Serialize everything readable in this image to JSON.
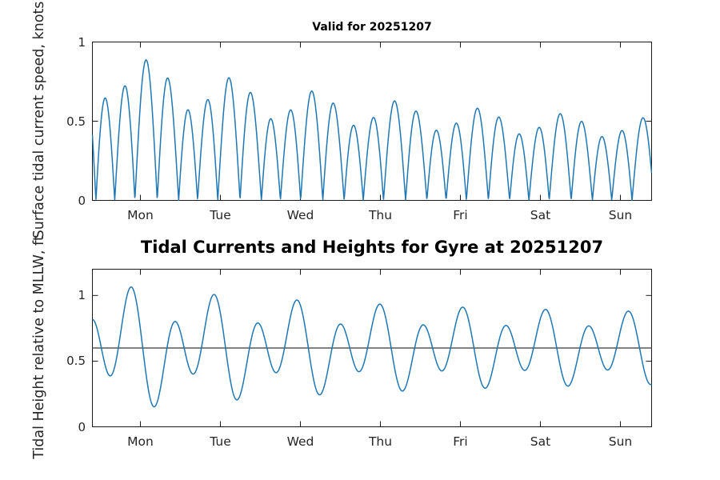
{
  "figure": {
    "kind": "tide-prediction-figure",
    "background": "#ffffff",
    "axes_color": "#1a1a1a",
    "tick_text_color": "#262626"
  },
  "chart_data": [
    {
      "type": "line",
      "title": "Valid for 20251207",
      "ylabel": "Surface tidal current speed, knots",
      "xlabel": "",
      "x_tick_labels": [
        "Mon",
        "Tue",
        "Wed",
        "Thu",
        "Fri",
        "Sat",
        "Sun"
      ],
      "x_tick_positions_days": [
        0.6,
        1.6,
        2.6,
        3.6,
        4.6,
        5.6,
        6.6
      ],
      "x_range_days": [
        0,
        6.99
      ],
      "ylim": [
        0,
        1
      ],
      "y_ticks": [
        0,
        0.5,
        1
      ],
      "y_tick_labels": [
        "0",
        "0.5",
        "1"
      ],
      "grid": false,
      "legend": "none",
      "line_color": "#1f77b4",
      "line_width": 1.5,
      "series_model": {
        "kind": "abs_sum_cosines",
        "mean": 0,
        "decay_tau_days": 3.5,
        "components": [
          {
            "name": "semidiurnal",
            "period_days": 0.5175366,
            "amp_start": 0.82,
            "amp_end": 0.4,
            "peak_day": 0.675
          },
          {
            "name": "diurnal-inequality",
            "period_days": 1.0350732,
            "amp_start": 0.17,
            "amp_end": 0.05,
            "peak_day": 0.6174
          }
        ]
      },
      "observed_peak_speeds_day1": [
        0.62,
        0.68,
        0.9,
        0.77
      ],
      "observed_peak_speeds_day7": [
        0.5,
        0.42,
        0.46,
        0.36
      ]
    },
    {
      "type": "line",
      "title": "Tidal Currents and Heights for Gyre at 20251207",
      "ylabel": "Tidal Height relative to MLLW, ft",
      "xlabel": "",
      "x_tick_labels": [
        "Mon",
        "Tue",
        "Wed",
        "Thu",
        "Fri",
        "Sat",
        "Sun"
      ],
      "x_tick_positions_days": [
        0.6,
        1.6,
        2.6,
        3.6,
        4.6,
        5.6,
        6.6
      ],
      "x_range_days": [
        0,
        6.99
      ],
      "ylim": [
        0,
        1.2
      ],
      "y_ticks": [
        0,
        0.5,
        1
      ],
      "y_tick_labels": [
        "0",
        "0.5",
        "1"
      ],
      "grid": false,
      "legend": "none",
      "line_color": "#1f77b4",
      "line_width": 1.5,
      "reference_line": {
        "value": 0.6,
        "color": "#595959",
        "width": 1.6
      },
      "series_model": {
        "kind": "sum_cosines",
        "mean": 0.6,
        "decay_tau_days": 3.5,
        "components": [
          {
            "name": "semidiurnal",
            "period_days": 0.5175366,
            "amp_start": 0.35,
            "amp_end": 0.2,
            "peak_day": 0.5
          },
          {
            "name": "diurnal-inequality",
            "period_days": 1.0350732,
            "amp_start": 0.2,
            "amp_end": 0.06,
            "peak_day": 0.37
          }
        ]
      },
      "observed_high_low_day1": [
        1.06,
        0.08,
        0.82,
        0.47
      ],
      "observed_high_low_day7": [
        0.87,
        0.3,
        0.73,
        0.45
      ]
    }
  ]
}
